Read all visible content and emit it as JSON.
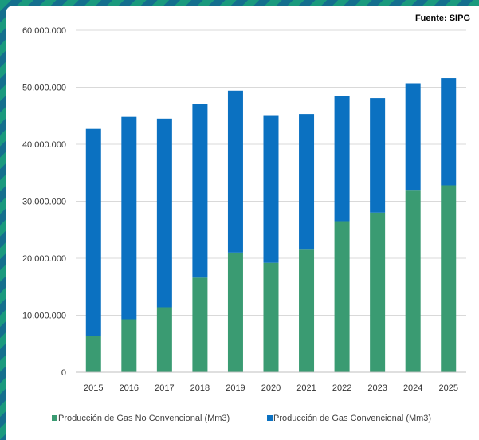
{
  "chart_data": {
    "type": "bar",
    "stacked": true,
    "source_label": "Fuente: SIPG",
    "categories": [
      "2015",
      "2016",
      "2017",
      "2018",
      "2019",
      "2020",
      "2021",
      "2022",
      "2023",
      "2024",
      "2025"
    ],
    "series": [
      {
        "name": "Producción de Gas No Convencional (Mm3)",
        "color": "#3a9b72",
        "values": [
          6300000,
          9300000,
          11400000,
          16600000,
          21000000,
          19200000,
          21500000,
          26500000,
          28000000,
          32000000,
          32800000
        ]
      },
      {
        "name": "Producción de Gas Convencional (Mm3)",
        "color": "#0b71c1",
        "values": [
          36400000,
          35500000,
          33100000,
          30400000,
          28400000,
          25900000,
          23800000,
          21900000,
          20100000,
          18700000,
          18800000
        ]
      }
    ],
    "ylim": [
      0,
      60000000
    ],
    "yticks": [
      {
        "value": 0,
        "label": "0"
      },
      {
        "value": 10000000,
        "label": "10.000.000"
      },
      {
        "value": 20000000,
        "label": "20.000.000"
      },
      {
        "value": 30000000,
        "label": "30.000.000"
      },
      {
        "value": 40000000,
        "label": "40.000.000"
      },
      {
        "value": 50000000,
        "label": "50.000.000"
      },
      {
        "value": 60000000,
        "label": "60.000.000"
      }
    ],
    "grid": true,
    "legend_position": "bottom"
  }
}
